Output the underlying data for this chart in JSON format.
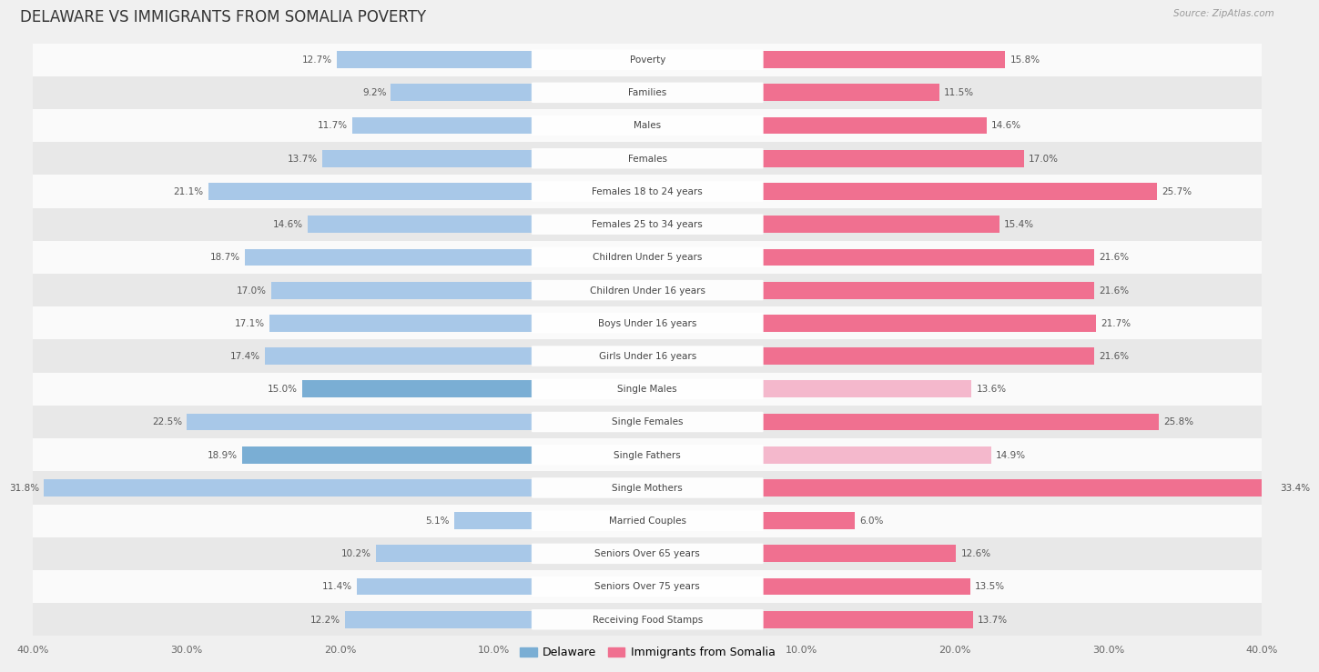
{
  "title": "DELAWARE VS IMMIGRANTS FROM SOMALIA POVERTY",
  "source": "Source: ZipAtlas.com",
  "categories": [
    "Poverty",
    "Families",
    "Males",
    "Females",
    "Females 18 to 24 years",
    "Females 25 to 34 years",
    "Children Under 5 years",
    "Children Under 16 years",
    "Boys Under 16 years",
    "Girls Under 16 years",
    "Single Males",
    "Single Females",
    "Single Fathers",
    "Single Mothers",
    "Married Couples",
    "Seniors Over 65 years",
    "Seniors Over 75 years",
    "Receiving Food Stamps"
  ],
  "delaware": [
    12.7,
    9.2,
    11.7,
    13.7,
    21.1,
    14.6,
    18.7,
    17.0,
    17.1,
    17.4,
    15.0,
    22.5,
    18.9,
    31.8,
    5.1,
    10.2,
    11.4,
    12.2
  ],
  "somalia": [
    15.8,
    11.5,
    14.6,
    17.0,
    25.7,
    15.4,
    21.6,
    21.6,
    21.7,
    21.6,
    13.6,
    25.8,
    14.9,
    33.4,
    6.0,
    12.6,
    13.5,
    13.7
  ],
  "delaware_color_light": "#a8c8e8",
  "delaware_color_dark": "#7aaed4",
  "somalia_color_light": "#f4b8cc",
  "somalia_color_dark": "#f07090",
  "background_color": "#f0f0f0",
  "row_bg_light": "#fafafa",
  "row_bg_dark": "#e8e8e8",
  "xlim": 40.0,
  "bar_height": 0.52,
  "label_fontsize": 7.5,
  "value_fontsize": 7.5,
  "title_fontsize": 12,
  "source_fontsize": 7.5,
  "legend_labels": [
    "Delaware",
    "Immigrants from Somalia"
  ],
  "legend_color_del": "#7aaed4",
  "legend_color_som": "#f07090"
}
